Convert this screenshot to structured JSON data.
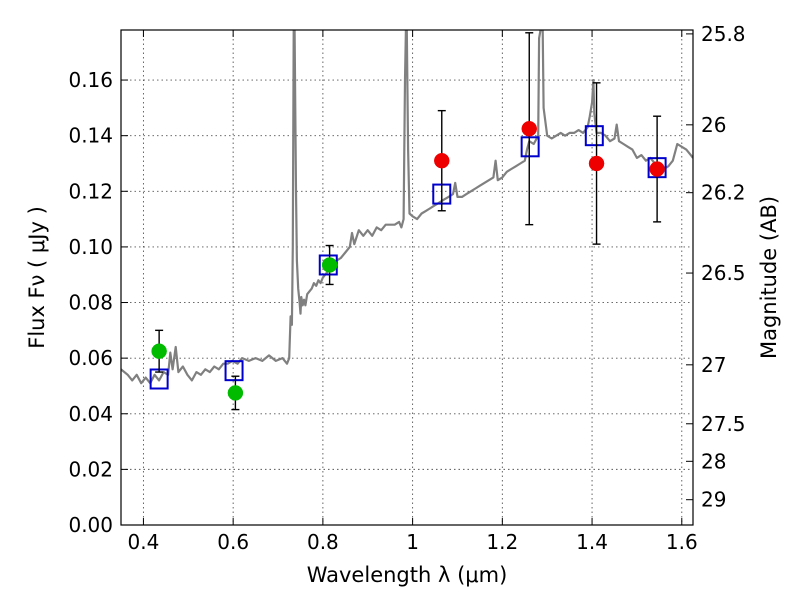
{
  "chart_data": {
    "type": "scatter",
    "xlabel": "Wavelength  λ (μm)",
    "ylabel": "Flux  Fν  ( μJy )",
    "ylabel_right": "Magnitude (AB)",
    "xlim": [
      0.35,
      1.625
    ],
    "ylim": [
      0.0,
      0.178
    ],
    "grid": true,
    "x_ticks": [
      0.4,
      0.6,
      0.8,
      1.0,
      1.2,
      1.4,
      1.6
    ],
    "x_tick_labels": [
      "0.4",
      "0.6",
      "0.8",
      "1",
      "1.2",
      "1.4",
      "1.6"
    ],
    "y_ticks": [
      0.0,
      0.02,
      0.04,
      0.06,
      0.08,
      0.1,
      0.12,
      0.14,
      0.16
    ],
    "y_tick_labels": [
      "0.00",
      "0.02",
      "0.04",
      "0.06",
      "0.08",
      "0.10",
      "0.12",
      "0.14",
      "0.16"
    ],
    "right_ticks": [
      {
        "label": "25.8",
        "flux": 0.1766
      },
      {
        "label": "26",
        "flux": 0.1439
      },
      {
        "label": "26.2",
        "flux": 0.1195
      },
      {
        "label": "26.5",
        "flux": 0.0906
      },
      {
        "label": "27",
        "flux": 0.0576
      },
      {
        "label": "27.5",
        "flux": 0.0364
      },
      {
        "label": "28",
        "flux": 0.0229
      },
      {
        "label": "29",
        "flux": 0.0091
      }
    ],
    "colors": {
      "model": "#808080",
      "model_photometry": "#0000cc",
      "green_points": "#00bb00",
      "red_points": "#ee0000",
      "errorbar": "#000000",
      "grid": "#555555"
    },
    "series": [
      {
        "points": [
          [
            0.435,
            0.0625
          ],
          [
            0.605,
            0.0475
          ],
          [
            0.815,
            0.0935
          ]
        ],
        "yerr": [
          0.0075,
          0.006,
          0.007
        ],
        "marker": "circle",
        "color": "#00bb00"
      },
      {
        "points": [
          [
            1.065,
            0.131
          ],
          [
            1.26,
            0.1425
          ],
          [
            1.41,
            0.13
          ],
          [
            1.545,
            0.128
          ]
        ],
        "yerr": [
          0.018,
          0.0345,
          0.029,
          0.019
        ],
        "marker": "circle",
        "color": "#ee0000"
      },
      {
        "points": [
          [
            0.435,
            0.0525
          ],
          [
            0.602,
            0.0555
          ],
          [
            0.812,
            0.0935
          ],
          [
            1.065,
            0.119
          ],
          [
            1.262,
            0.136
          ],
          [
            1.405,
            0.14
          ],
          [
            1.545,
            0.1285
          ]
        ],
        "marker": "open-square",
        "color": "#0000cc"
      },
      {
        "marker": "line",
        "color": "#808080",
        "points": [
          [
            0.35,
            0.056
          ],
          [
            0.365,
            0.054
          ],
          [
            0.375,
            0.052
          ],
          [
            0.385,
            0.054
          ],
          [
            0.395,
            0.051
          ],
          [
            0.405,
            0.053
          ],
          [
            0.415,
            0.051
          ],
          [
            0.425,
            0.054
          ],
          [
            0.435,
            0.052
          ],
          [
            0.445,
            0.055
          ],
          [
            0.455,
            0.054
          ],
          [
            0.46,
            0.062
          ],
          [
            0.465,
            0.056
          ],
          [
            0.472,
            0.064
          ],
          [
            0.478,
            0.055
          ],
          [
            0.488,
            0.057
          ],
          [
            0.498,
            0.054
          ],
          [
            0.508,
            0.052
          ],
          [
            0.518,
            0.055
          ],
          [
            0.528,
            0.054
          ],
          [
            0.538,
            0.056
          ],
          [
            0.548,
            0.055
          ],
          [
            0.558,
            0.057
          ],
          [
            0.568,
            0.056
          ],
          [
            0.578,
            0.058
          ],
          [
            0.588,
            0.058
          ],
          [
            0.598,
            0.059
          ],
          [
            0.61,
            0.058
          ],
          [
            0.62,
            0.06
          ],
          [
            0.635,
            0.059
          ],
          [
            0.65,
            0.06
          ],
          [
            0.665,
            0.059
          ],
          [
            0.68,
            0.061
          ],
          [
            0.695,
            0.059
          ],
          [
            0.71,
            0.06
          ],
          [
            0.72,
            0.058
          ],
          [
            0.725,
            0.06
          ],
          [
            0.728,
            0.075
          ],
          [
            0.731,
            0.072
          ],
          [
            0.733,
            0.1
          ],
          [
            0.735,
            0.178
          ],
          [
            0.737,
            0.178
          ],
          [
            0.74,
            0.12
          ],
          [
            0.742,
            0.095
          ],
          [
            0.745,
            0.085
          ],
          [
            0.748,
            0.08
          ],
          [
            0.75,
            0.076
          ],
          [
            0.752,
            0.082
          ],
          [
            0.755,
            0.079
          ],
          [
            0.758,
            0.081
          ],
          [
            0.761,
            0.079
          ],
          [
            0.765,
            0.083
          ],
          [
            0.77,
            0.084
          ],
          [
            0.775,
            0.085
          ],
          [
            0.78,
            0.087
          ],
          [
            0.785,
            0.086
          ],
          [
            0.79,
            0.088
          ],
          [
            0.795,
            0.087
          ],
          [
            0.8,
            0.089
          ],
          [
            0.81,
            0.091
          ],
          [
            0.82,
            0.093
          ],
          [
            0.83,
            0.095
          ],
          [
            0.84,
            0.096
          ],
          [
            0.85,
            0.098
          ],
          [
            0.86,
            0.1
          ],
          [
            0.865,
            0.105
          ],
          [
            0.87,
            0.101
          ],
          [
            0.88,
            0.106
          ],
          [
            0.89,
            0.104
          ],
          [
            0.9,
            0.106
          ],
          [
            0.91,
            0.104
          ],
          [
            0.92,
            0.107
          ],
          [
            0.93,
            0.106
          ],
          [
            0.94,
            0.108
          ],
          [
            0.95,
            0.108
          ],
          [
            0.96,
            0.108
          ],
          [
            0.97,
            0.109
          ],
          [
            0.975,
            0.107
          ],
          [
            0.98,
            0.11
          ],
          [
            0.983,
            0.16
          ],
          [
            0.985,
            0.178
          ],
          [
            0.987,
            0.178
          ],
          [
            0.99,
            0.135
          ],
          [
            0.993,
            0.112
          ],
          [
            1.0,
            0.111
          ],
          [
            1.01,
            0.11
          ],
          [
            1.02,
            0.112
          ],
          [
            1.03,
            0.113
          ],
          [
            1.04,
            0.114
          ],
          [
            1.05,
            0.115
          ],
          [
            1.06,
            0.116
          ],
          [
            1.07,
            0.117
          ],
          [
            1.08,
            0.118
          ],
          [
            1.09,
            0.119
          ],
          [
            1.095,
            0.123
          ],
          [
            1.1,
            0.118
          ],
          [
            1.11,
            0.118
          ],
          [
            1.12,
            0.119
          ],
          [
            1.13,
            0.12
          ],
          [
            1.14,
            0.121
          ],
          [
            1.15,
            0.122
          ],
          [
            1.16,
            0.123
          ],
          [
            1.17,
            0.124
          ],
          [
            1.18,
            0.125
          ],
          [
            1.185,
            0.131
          ],
          [
            1.19,
            0.124
          ],
          [
            1.2,
            0.125
          ],
          [
            1.21,
            0.127
          ],
          [
            1.22,
            0.128
          ],
          [
            1.23,
            0.129
          ],
          [
            1.24,
            0.13
          ],
          [
            1.25,
            0.131
          ],
          [
            1.255,
            0.135
          ],
          [
            1.26,
            0.138
          ],
          [
            1.27,
            0.137
          ],
          [
            1.28,
            0.14
          ],
          [
            1.282,
            0.175
          ],
          [
            1.285,
            0.178
          ],
          [
            1.29,
            0.178
          ],
          [
            1.292,
            0.15
          ],
          [
            1.3,
            0.14
          ],
          [
            1.31,
            0.139
          ],
          [
            1.32,
            0.14
          ],
          [
            1.33,
            0.141
          ],
          [
            1.34,
            0.14
          ],
          [
            1.35,
            0.141
          ],
          [
            1.36,
            0.141
          ],
          [
            1.37,
            0.142
          ],
          [
            1.38,
            0.141
          ],
          [
            1.39,
            0.143
          ],
          [
            1.395,
            0.147
          ],
          [
            1.4,
            0.152
          ],
          [
            1.403,
            0.16
          ],
          [
            1.405,
            0.148
          ],
          [
            1.41,
            0.141
          ],
          [
            1.42,
            0.141
          ],
          [
            1.43,
            0.14
          ],
          [
            1.44,
            0.138
          ],
          [
            1.45,
            0.139
          ],
          [
            1.455,
            0.144
          ],
          [
            1.46,
            0.138
          ],
          [
            1.47,
            0.137
          ],
          [
            1.48,
            0.136
          ],
          [
            1.49,
            0.135
          ],
          [
            1.5,
            0.132
          ],
          [
            1.51,
            0.133
          ],
          [
            1.52,
            0.131
          ],
          [
            1.53,
            0.132
          ],
          [
            1.54,
            0.13
          ],
          [
            1.55,
            0.129
          ],
          [
            1.56,
            0.128
          ],
          [
            1.57,
            0.129
          ],
          [
            1.58,
            0.131
          ],
          [
            1.59,
            0.137
          ],
          [
            1.6,
            0.136
          ],
          [
            1.61,
            0.135
          ],
          [
            1.62,
            0.133
          ],
          [
            1.625,
            0.132
          ]
        ]
      }
    ]
  }
}
